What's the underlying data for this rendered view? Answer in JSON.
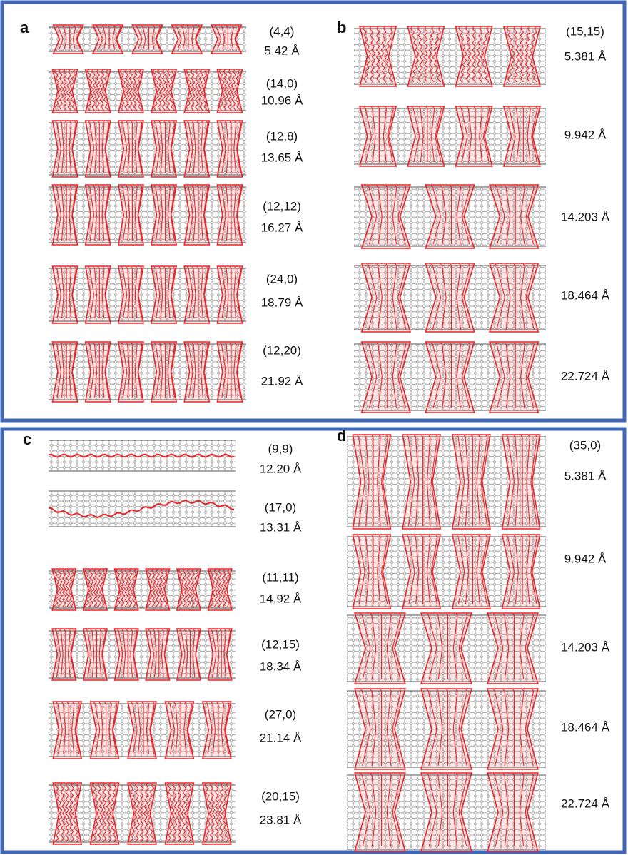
{
  "panels": [
    {
      "label": "a",
      "rows": [
        {
          "chirality": "(4,4)",
          "diameter": "5.42 Å"
        },
        {
          "chirality": "(14,0)",
          "diameter": "10.96 Å"
        },
        {
          "chirality": "(12,8)",
          "diameter": "13.65 Å"
        },
        {
          "chirality": "(12,12)",
          "diameter": "16.27 Å"
        },
        {
          "chirality": "(24,0)",
          "diameter": "18.79 Å"
        },
        {
          "chirality": "(12,20)",
          "diameter": "21.92 Å"
        }
      ]
    },
    {
      "label": "b",
      "rows": [
        {
          "chirality": "(15,15)",
          "diameter": "5.381 Å"
        },
        {
          "diameter": "9.942 Å"
        },
        {
          "diameter": "14.203 Å"
        },
        {
          "diameter": "18.464 Å"
        },
        {
          "diameter": "22.724 Å"
        }
      ]
    },
    {
      "label": "c",
      "rows": [
        {
          "chirality": "(9,9)",
          "diameter": "12.20 Å"
        },
        {
          "chirality": "(17,0)",
          "diameter": "13.31 Å"
        },
        {
          "chirality": "(11,11)",
          "diameter": "14.92 Å"
        },
        {
          "chirality": "(12,15)",
          "diameter": "18.34 Å"
        },
        {
          "chirality": "(27,0)",
          "diameter": "21.14 Å"
        },
        {
          "chirality": "(20,15)",
          "diameter": "23.81 Å"
        }
      ]
    },
    {
      "label": "d",
      "rows": [
        {
          "chirality": "(35,0)",
          "diameter": "5.381 Å"
        },
        {
          "diameter": "9.942 Å"
        },
        {
          "diameter": "14.203 Å"
        },
        {
          "diameter": "18.464 Å"
        },
        {
          "diameter": "22.724 Å"
        }
      ]
    }
  ]
}
